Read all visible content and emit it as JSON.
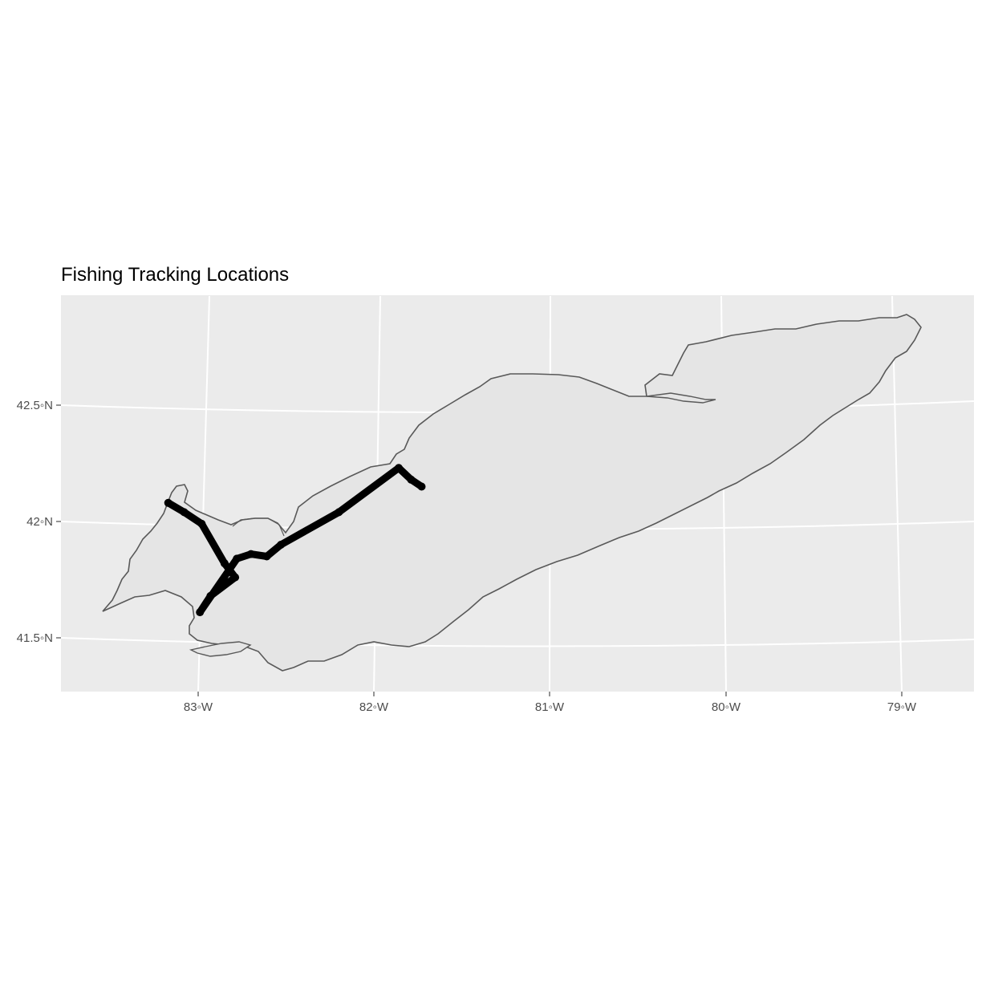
{
  "title": "Fishing Tracking Locations",
  "colors": {
    "panel_background": "#ebebeb",
    "gridline": "#ffffff",
    "lake_fill": "#e5e5e5",
    "lake_outline": "#595959",
    "track": "#000000",
    "axis_text": "#4d4d4d"
  },
  "axes": {
    "x_ticks": [
      {
        "value": -83,
        "label": "83◦W"
      },
      {
        "value": -82,
        "label": "82◦W"
      },
      {
        "value": -81,
        "label": "81◦W"
      },
      {
        "value": -80,
        "label": "80◦W"
      },
      {
        "value": -79,
        "label": "79◦W"
      }
    ],
    "y_ticks": [
      {
        "value": 42.5,
        "label": "42.5◦N"
      },
      {
        "value": 42.0,
        "label": "42◦N"
      },
      {
        "value": 41.5,
        "label": "41.5◦N"
      }
    ],
    "xlim": [
      -83.8,
      -78.4
    ],
    "ylim": [
      41.27,
      42.96
    ],
    "grid": true
  },
  "chart_data": {
    "type": "map",
    "title": "Fishing Tracking Locations",
    "region": "Lake Erie",
    "track_points": [
      {
        "lon": -83.17,
        "lat": 42.08
      },
      {
        "lon": -83.08,
        "lat": 42.04
      },
      {
        "lon": -82.98,
        "lat": 41.99
      },
      {
        "lon": -82.85,
        "lat": 41.82
      },
      {
        "lon": -82.79,
        "lat": 41.76
      },
      {
        "lon": -82.93,
        "lat": 41.68
      },
      {
        "lon": -82.99,
        "lat": 41.61
      },
      {
        "lon": -82.78,
        "lat": 41.84
      },
      {
        "lon": -82.7,
        "lat": 41.86
      },
      {
        "lon": -82.61,
        "lat": 41.85
      },
      {
        "lon": -82.53,
        "lat": 41.9
      },
      {
        "lon": -82.2,
        "lat": 42.04
      },
      {
        "lon": -81.86,
        "lat": 42.23
      },
      {
        "lon": -81.79,
        "lat": 42.18
      },
      {
        "lon": -81.73,
        "lat": 42.15
      }
    ]
  }
}
